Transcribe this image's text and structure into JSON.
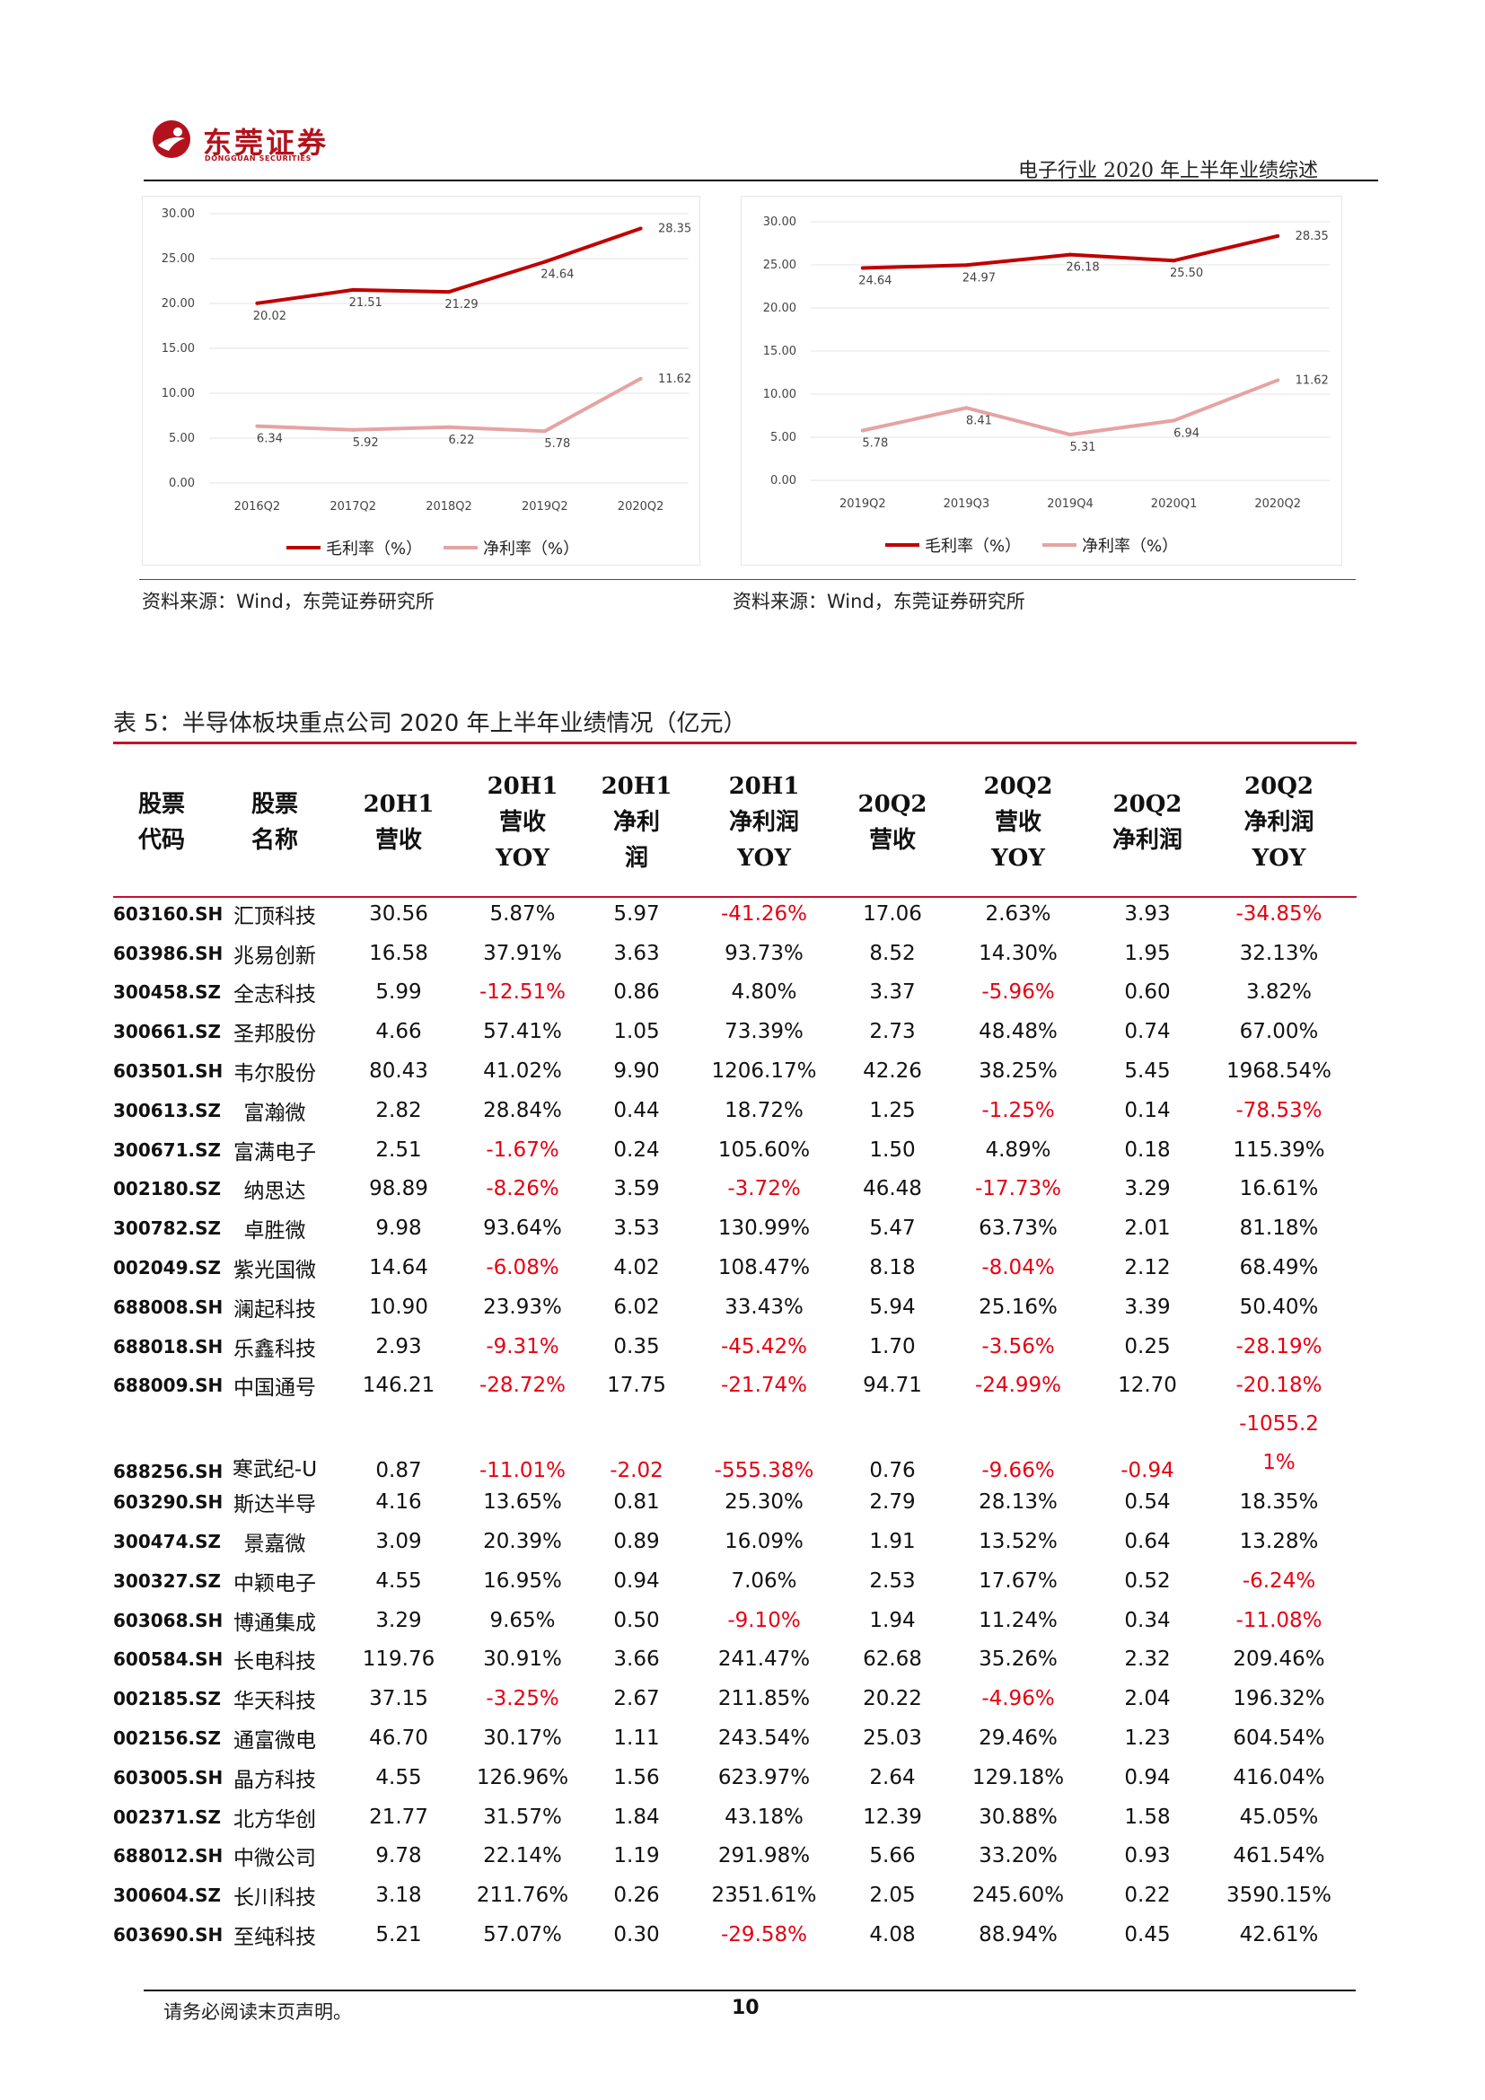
{
  "header": {
    "company_name": "东莞证券",
    "company_name_en": "DONGGUAN SECURITIES",
    "report_title": "电子行业 2020 年上半年业绩综述",
    "brand_color": "#b3121c"
  },
  "chart_data": [
    {
      "type": "line",
      "categories": [
        "2016Q2",
        "2017Q2",
        "2018Q2",
        "2019Q2",
        "2020Q2"
      ],
      "series": [
        {
          "name": "毛利率（%）",
          "values": [
            20.02,
            21.51,
            21.29,
            24.64,
            28.35
          ],
          "labels": [
            "20.02",
            "21.51",
            "21.29",
            "24.64",
            "28.35"
          ],
          "color": "#c00000"
        },
        {
          "name": "净利率（%）",
          "values": [
            6.34,
            5.92,
            6.22,
            5.78,
            11.62
          ],
          "labels": [
            "6.34",
            "5.92",
            "6.22",
            "5.78",
            "11.62"
          ],
          "color": "#e6a3a3"
        }
      ],
      "y_ticks": [
        "30.00",
        "25.00",
        "20.00",
        "15.00",
        "10.00",
        "5.00",
        "0.00"
      ],
      "ylim": [
        0,
        30
      ],
      "grid": true,
      "legend": "bottom"
    },
    {
      "type": "line",
      "categories": [
        "2019Q2",
        "2019Q3",
        "2019Q4",
        "2020Q1",
        "2020Q2"
      ],
      "series": [
        {
          "name": "毛利率（%）",
          "values": [
            24.64,
            24.97,
            26.18,
            25.5,
            28.35
          ],
          "labels": [
            "24.64",
            "24.97",
            "26.18",
            "25.50",
            "28.35"
          ],
          "color": "#c00000"
        },
        {
          "name": "净利率（%）",
          "values": [
            5.78,
            8.41,
            5.31,
            6.94,
            11.62
          ],
          "labels": [
            "5.78",
            "8.41",
            "5.31",
            "6.94",
            "11.62"
          ],
          "color": "#e6a3a3"
        }
      ],
      "y_ticks": [
        "30.00",
        "25.00",
        "20.00",
        "15.00",
        "10.00",
        "5.00",
        "0.00"
      ],
      "ylim": [
        0,
        30
      ],
      "grid": true,
      "legend": "bottom"
    }
  ],
  "sources": {
    "left": "资料来源：Wind，东莞证券研究所",
    "right": "资料来源：Wind，东莞证券研究所"
  },
  "table": {
    "caption": "表 5：半导体板块重点公司 2020 年上半年业绩情况（亿元）",
    "headers": [
      "股票\n代码",
      "股票\n名称",
      "20H1\n营收",
      "20H1\n营收\nYOY",
      "20H1\n净利\n润",
      "20H1\n净利润\nYOY",
      "20Q2\n营收",
      "20Q2\n营收\nYOY",
      "20Q2\n净利润",
      "20Q2\n净利润\nYOY"
    ],
    "negative_color": "#e60012",
    "rows": [
      [
        "603160.SH",
        "汇顶科技",
        "30.56",
        "5.87%",
        "5.97",
        "-41.26%",
        "17.06",
        "2.63%",
        "3.93",
        "-34.85%"
      ],
      [
        "603986.SH",
        "兆易创新",
        "16.58",
        "37.91%",
        "3.63",
        "93.73%",
        "8.52",
        "14.30%",
        "1.95",
        "32.13%"
      ],
      [
        "300458.SZ",
        "全志科技",
        "5.99",
        "-12.51%",
        "0.86",
        "4.80%",
        "3.37",
        "-5.96%",
        "0.60",
        "3.82%"
      ],
      [
        "300661.SZ",
        "圣邦股份",
        "4.66",
        "57.41%",
        "1.05",
        "73.39%",
        "2.73",
        "48.48%",
        "0.74",
        "67.00%"
      ],
      [
        "603501.SH",
        "韦尔股份",
        "80.43",
        "41.02%",
        "9.90",
        "1206.17%",
        "42.26",
        "38.25%",
        "5.45",
        "1968.54%"
      ],
      [
        "300613.SZ",
        "富瀚微",
        "2.82",
        "28.84%",
        "0.44",
        "18.72%",
        "1.25",
        "-1.25%",
        "0.14",
        "-78.53%"
      ],
      [
        "300671.SZ",
        "富满电子",
        "2.51",
        "-1.67%",
        "0.24",
        "105.60%",
        "1.50",
        "4.89%",
        "0.18",
        "115.39%"
      ],
      [
        "002180.SZ",
        "纳思达",
        "98.89",
        "-8.26%",
        "3.59",
        "-3.72%",
        "46.48",
        "-17.73%",
        "3.29",
        "16.61%"
      ],
      [
        "300782.SZ",
        "卓胜微",
        "9.98",
        "93.64%",
        "3.53",
        "130.99%",
        "5.47",
        "63.73%",
        "2.01",
        "81.18%"
      ],
      [
        "002049.SZ",
        "紫光国微",
        "14.64",
        "-6.08%",
        "4.02",
        "108.47%",
        "8.18",
        "-8.04%",
        "2.12",
        "68.49%"
      ],
      [
        "688008.SH",
        "澜起科技",
        "10.90",
        "23.93%",
        "6.02",
        "33.43%",
        "5.94",
        "25.16%",
        "3.39",
        "50.40%"
      ],
      [
        "688018.SH",
        "乐鑫科技",
        "2.93",
        "-9.31%",
        "0.35",
        "-45.42%",
        "1.70",
        "-3.56%",
        "0.25",
        "-28.19%"
      ],
      [
        "688009.SH",
        "中国通号",
        "146.21",
        "-28.72%",
        "17.75",
        "-21.74%",
        "94.71",
        "-24.99%",
        "12.70",
        "-20.18%"
      ],
      [
        "688256.SH",
        "寒武纪-U",
        "0.87",
        "-11.01%",
        "-2.02",
        "-555.38%",
        "0.76",
        "-9.66%",
        "-0.94",
        "-1055.21%"
      ],
      [
        "603290.SH",
        "斯达半导",
        "4.16",
        "13.65%",
        "0.81",
        "25.30%",
        "2.79",
        "28.13%",
        "0.54",
        "18.35%"
      ],
      [
        "300474.SZ",
        "景嘉微",
        "3.09",
        "20.39%",
        "0.89",
        "16.09%",
        "1.91",
        "13.52%",
        "0.64",
        "13.28%"
      ],
      [
        "300327.SZ",
        "中颖电子",
        "4.55",
        "16.95%",
        "0.94",
        "7.06%",
        "2.53",
        "17.67%",
        "0.52",
        "-6.24%"
      ],
      [
        "603068.SH",
        "博通集成",
        "3.29",
        "9.65%",
        "0.50",
        "-9.10%",
        "1.94",
        "11.24%",
        "0.34",
        "-11.08%"
      ],
      [
        "600584.SH",
        "长电科技",
        "119.76",
        "30.91%",
        "3.66",
        "241.47%",
        "62.68",
        "35.26%",
        "2.32",
        "209.46%"
      ],
      [
        "002185.SZ",
        "华天科技",
        "37.15",
        "-3.25%",
        "2.67",
        "211.85%",
        "20.22",
        "-4.96%",
        "2.04",
        "196.32%"
      ],
      [
        "002156.SZ",
        "通富微电",
        "46.70",
        "30.17%",
        "1.11",
        "243.54%",
        "25.03",
        "29.46%",
        "1.23",
        "604.54%"
      ],
      [
        "603005.SH",
        "晶方科技",
        "4.55",
        "126.96%",
        "1.56",
        "623.97%",
        "2.64",
        "129.18%",
        "0.94",
        "416.04%"
      ],
      [
        "002371.SZ",
        "北方华创",
        "21.77",
        "31.57%",
        "1.84",
        "43.18%",
        "12.39",
        "30.88%",
        "1.58",
        "45.05%"
      ],
      [
        "688012.SH",
        "中微公司",
        "9.78",
        "22.14%",
        "1.19",
        "291.98%",
        "5.66",
        "33.20%",
        "0.93",
        "461.54%"
      ],
      [
        "300604.SZ",
        "长川科技",
        "3.18",
        "211.76%",
        "0.26",
        "2351.61%",
        "2.05",
        "245.60%",
        "0.22",
        "3590.15%"
      ],
      [
        "603690.SH",
        "至纯科技",
        "5.21",
        "57.07%",
        "0.30",
        "-29.58%",
        "4.08",
        "88.94%",
        "0.45",
        "42.61%"
      ]
    ]
  },
  "footer": {
    "note": "请务必阅读末页声明。",
    "page_number": "10"
  }
}
